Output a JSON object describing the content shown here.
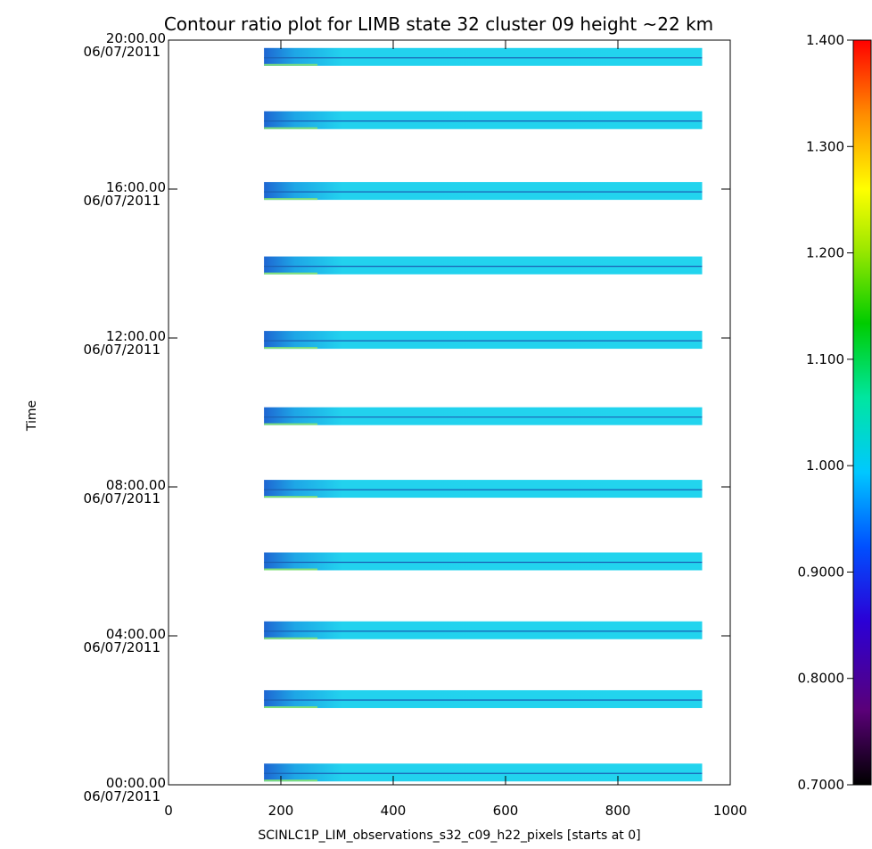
{
  "chart_data": {
    "type": "heatmap",
    "title": "Contour ratio plot for LIMB state 32 cluster 09 height ~22 km",
    "xlabel": "SCINLC1P_LIM_observations_s32_c09_h22_pixels [starts at 0]",
    "ylabel": "Time",
    "xlim": [
      0,
      1000
    ],
    "x_ticks": [
      "0",
      "200",
      "400",
      "600",
      "800",
      "1000"
    ],
    "y_ticks": [
      {
        "time": "00:00.00",
        "date": "06/07/2011"
      },
      {
        "time": "04:00.00",
        "date": "06/07/2011"
      },
      {
        "time": "08:00.00",
        "date": "06/07/2011"
      },
      {
        "time": "12:00.00",
        "date": "06/07/2011"
      },
      {
        "time": "16:00.00",
        "date": "06/07/2011"
      },
      {
        "time": "20:00.00",
        "date": "06/07/2011"
      }
    ],
    "ylim_hours": [
      0,
      20
    ],
    "colorbar": {
      "range": [
        0.7,
        1.4
      ],
      "ticks": [
        "0.7000",
        "0.8000",
        "0.9000",
        "1.000",
        "1.100",
        "1.200",
        "1.300",
        "1.400"
      ],
      "colormap": "rainbow (black-purple-blue-cyan-green-yellow-red)"
    },
    "series": [
      {
        "hours": 0.33,
        "x_start": 170,
        "x_end": 950,
        "value": 0.98
      },
      {
        "hours": 2.3,
        "x_start": 170,
        "x_end": 950,
        "value": 0.98
      },
      {
        "hours": 4.15,
        "x_start": 170,
        "x_end": 950,
        "value": 0.98
      },
      {
        "hours": 6.0,
        "x_start": 170,
        "x_end": 950,
        "value": 0.98
      },
      {
        "hours": 7.95,
        "x_start": 170,
        "x_end": 950,
        "value": 0.98
      },
      {
        "hours": 9.9,
        "x_start": 170,
        "x_end": 950,
        "value": 0.98
      },
      {
        "hours": 11.95,
        "x_start": 170,
        "x_end": 950,
        "value": 0.98
      },
      {
        "hours": 13.95,
        "x_start": 170,
        "x_end": 950,
        "value": 0.98
      },
      {
        "hours": 15.95,
        "x_start": 170,
        "x_end": 950,
        "value": 0.98
      },
      {
        "hours": 17.85,
        "x_start": 170,
        "x_end": 950,
        "value": 0.98
      },
      {
        "hours": 19.55,
        "x_start": 170,
        "x_end": 950,
        "value": 0.98
      }
    ]
  }
}
